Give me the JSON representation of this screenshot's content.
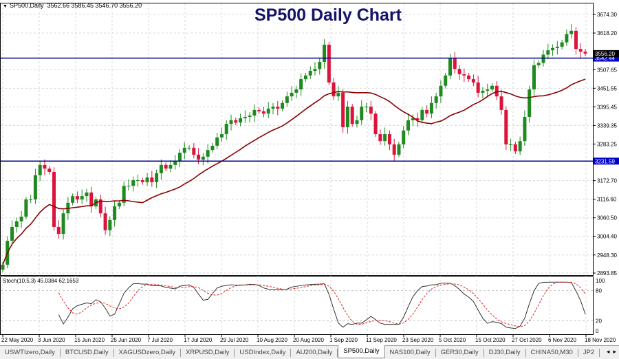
{
  "header": {
    "symbol": "SP500,Daily",
    "ohlc": "3562.66 3586.45 3546.70 3556.20"
  },
  "title": "SP500 Daily Chart",
  "stoch_label": "Stoch(10,5,3) 45.0384 62.1653",
  "tabs": [
    {
      "label": "USWTIzero,Daily"
    },
    {
      "label": "BTCUSD,Daily"
    },
    {
      "label": "XAGUSDzero,Daily"
    },
    {
      "label": "XRPUSD,Daily"
    },
    {
      "label": "USDIndex,Daily"
    },
    {
      "label": "AU200,Daily"
    },
    {
      "label": "SP500,Daily",
      "active": true
    },
    {
      "label": "NAS100,Daily"
    },
    {
      "label": "GER30,Daily"
    },
    {
      "label": "DJ30,Daily"
    },
    {
      "label": "CHINA50,M30"
    },
    {
      "label": "JP2"
    }
  ],
  "tab_scroll": {
    "left": "◂",
    "right": "▸"
  },
  "colors": {
    "bull": "#1f8a1f",
    "bear": "#dc143c",
    "ma": "#8b0000",
    "hline": "#00008b",
    "title": "#13136b"
  },
  "chart_data": {
    "type": "candlestick",
    "title": "SP500 Daily Chart",
    "ylim": [
      2893.85,
      3674.3
    ],
    "yticks": [
      "3674.30",
      "3618.20",
      "3507.65",
      "3451.55",
      "3395.45",
      "3339.35",
      "3283.25",
      "3172.70",
      "3116.60",
      "3060.50",
      "3004.40",
      "2948.30",
      "2893.85"
    ],
    "xticks": [
      "22 May 2020",
      "3 Jun 2020",
      "15 Jun 2020",
      "25 Jun 2020",
      "7 Jul 2020",
      "17 Jul 2020",
      "29 Jul 2020",
      "10 Aug 2020",
      "20 Aug 2020",
      "1 Sep 2020",
      "11 Sep 2020",
      "23 Sep 2020",
      "5 Oct 2020",
      "15 Oct 2020",
      "27 Oct 2020",
      "6 Nov 2020",
      "18 Nov 2020"
    ],
    "current_price": "3556.20",
    "horizontal_lines": [
      {
        "value": 3542.44,
        "label": "3542.44"
      },
      {
        "value": 3231.59,
        "label": "3231.59"
      }
    ],
    "closes": [
      2919,
      2991,
      3033,
      3050,
      3064,
      3116,
      3116,
      3189,
      3220,
      3209,
      3199,
      3033,
      3012,
      3074,
      3106,
      3126,
      3116,
      3126,
      3137,
      3095,
      3116,
      3074,
      3023,
      3054,
      3095,
      3106,
      3157,
      3157,
      3174,
      3174,
      3168,
      3182,
      3168,
      3195,
      3220,
      3209,
      3220,
      3230,
      3257,
      3272,
      3272,
      3251,
      3236,
      3245,
      3265,
      3278,
      3303,
      3313,
      3344,
      3355,
      3348,
      3361,
      3365,
      3369,
      3386,
      3382,
      3375,
      3390,
      3396,
      3390,
      3407,
      3427,
      3438,
      3448,
      3479,
      3490,
      3504,
      3510,
      3531,
      3583,
      3469,
      3427,
      3438,
      3334,
      3396,
      3344,
      3355,
      3396,
      3396,
      3375,
      3313,
      3292,
      3313,
      3282,
      3251,
      3282,
      3324,
      3355,
      3361,
      3355,
      3386,
      3375,
      3407,
      3427,
      3459,
      3490,
      3541,
      3510,
      3494,
      3490,
      3479,
      3469,
      3438,
      3444,
      3448,
      3459,
      3427,
      3386,
      3282,
      3282,
      3261,
      3292,
      3365,
      3448,
      3521,
      3528,
      3553,
      3566,
      3573,
      3577,
      3590,
      3615,
      3625,
      3570,
      3562,
      3556.2
    ],
    "moving_average": {
      "period": 20
    },
    "stochastic": {
      "k": 10,
      "d": 5,
      "slowing": 3,
      "main": 45.0384,
      "signal": 62.1653,
      "levels": [
        20,
        80
      ],
      "ylim": [
        0,
        100
      ],
      "yticks": [
        "100",
        "80",
        "20",
        "0"
      ]
    }
  }
}
